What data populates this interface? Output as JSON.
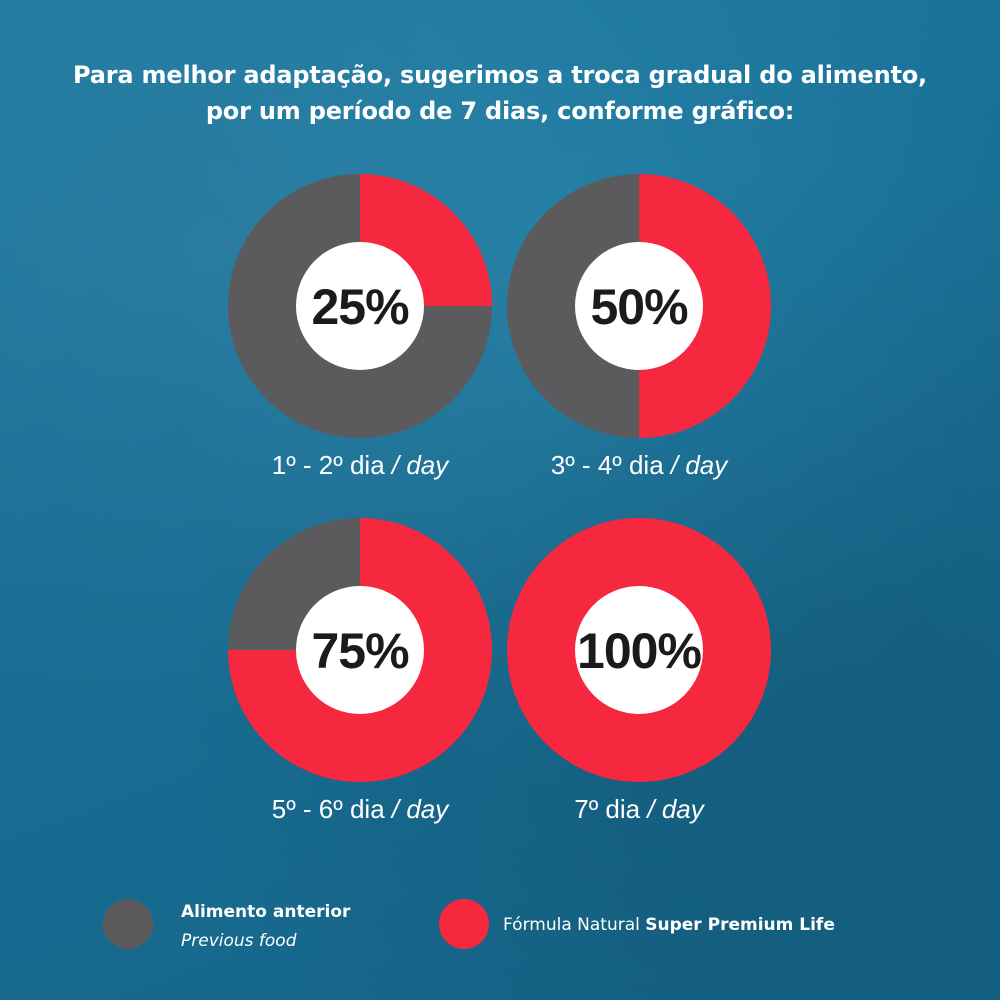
{
  "headline": {
    "line1": "Para melhor adaptação, sugerimos a troca gradual do alimento,",
    "line2": "por um período de 7 dias, conforme gráfico:"
  },
  "colors": {
    "previous_food": "#5b5b5d",
    "new_formula": "#f5283f",
    "center": "#ffffff"
  },
  "chart_data": [
    {
      "type": "pie",
      "center_label": "25%",
      "slices": [
        {
          "series": "Alimento anterior",
          "value": 75
        },
        {
          "series": "Fórmula Natural Super Premium Life",
          "value": 25
        }
      ],
      "caption": {
        "pt": "1º - 2º dia",
        "sep": " / ",
        "en": "day"
      }
    },
    {
      "type": "pie",
      "center_label": "50%",
      "slices": [
        {
          "series": "Alimento anterior",
          "value": 50
        },
        {
          "series": "Fórmula Natural Super Premium Life",
          "value": 50
        }
      ],
      "caption": {
        "pt": "3º - 4º dia",
        "sep": " / ",
        "en": "day"
      }
    },
    {
      "type": "pie",
      "center_label": "75%",
      "slices": [
        {
          "series": "Alimento anterior",
          "value": 25
        },
        {
          "series": "Fórmula Natural Super Premium Life",
          "value": 75
        }
      ],
      "caption": {
        "pt": "5º - 6º dia",
        "sep": " / ",
        "en": "day"
      }
    },
    {
      "type": "pie",
      "center_label": "100%",
      "slices": [
        {
          "series": "Alimento anterior",
          "value": 0
        },
        {
          "series": "Fórmula Natural Super Premium Life",
          "value": 100
        }
      ],
      "caption": {
        "pt": "7º dia",
        "sep": " / ",
        "en": "day"
      }
    }
  ],
  "legend": {
    "previous": {
      "bold": "Alimento anterior",
      "italic": "Previous food"
    },
    "new": {
      "regular": "Fórmula Natural ",
      "bold": "Super Premium Life"
    }
  }
}
